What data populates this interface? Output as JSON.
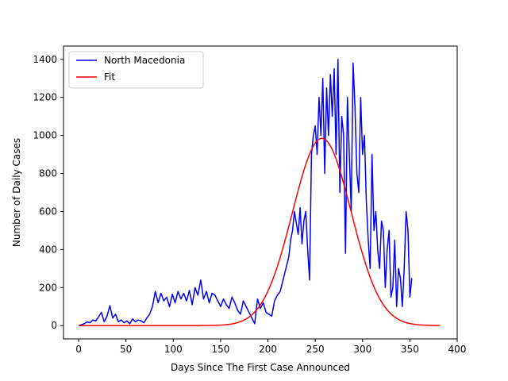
{
  "chart_data": {
    "type": "line",
    "title": "",
    "xlabel": "Days Since The First Case Announced",
    "ylabel": "Number of Daily Cases",
    "xlim": [
      -16,
      400
    ],
    "ylim": [
      -70,
      1470
    ],
    "xticks": [
      0,
      50,
      100,
      150,
      200,
      250,
      300,
      350,
      400
    ],
    "yticks": [
      0,
      200,
      400,
      600,
      800,
      1000,
      1200,
      1400
    ],
    "grid": false,
    "legend_position": "top-left",
    "series": [
      {
        "name": "North Macedonia",
        "color": "#0000ff",
        "x": [
          0,
          3,
          6,
          9,
          12,
          15,
          18,
          21,
          24,
          27,
          30,
          33,
          36,
          39,
          42,
          45,
          48,
          51,
          54,
          57,
          60,
          63,
          66,
          69,
          72,
          75,
          78,
          81,
          84,
          87,
          90,
          93,
          96,
          99,
          102,
          105,
          108,
          111,
          114,
          117,
          120,
          123,
          126,
          129,
          132,
          135,
          138,
          141,
          144,
          147,
          150,
          153,
          156,
          159,
          162,
          165,
          168,
          171,
          174,
          177,
          180,
          183,
          186,
          189,
          192,
          195,
          198,
          201,
          204,
          207,
          210,
          213,
          216,
          219,
          222,
          224,
          226,
          228,
          230,
          232,
          234,
          236,
          238,
          240,
          242,
          244,
          246,
          248,
          250,
          252,
          254,
          256,
          258,
          260,
          262,
          264,
          266,
          268,
          270,
          272,
          274,
          276,
          278,
          280,
          282,
          284,
          286,
          288,
          290,
          292,
          294,
          296,
          298,
          300,
          302,
          304,
          306,
          308,
          310,
          312,
          314,
          316,
          318,
          320,
          322,
          324,
          326,
          328,
          330,
          332,
          334,
          336,
          338,
          340,
          342,
          344,
          346,
          348,
          350,
          352
        ],
        "y": [
          0,
          5,
          10,
          20,
          15,
          30,
          25,
          45,
          70,
          20,
          50,
          105,
          40,
          60,
          20,
          30,
          15,
          25,
          10,
          35,
          20,
          30,
          25,
          15,
          40,
          60,
          100,
          180,
          120,
          170,
          130,
          150,
          100,
          165,
          120,
          180,
          140,
          170,
          130,
          185,
          110,
          200,
          160,
          240,
          140,
          180,
          120,
          170,
          160,
          130,
          100,
          140,
          110,
          90,
          150,
          120,
          80,
          60,
          130,
          100,
          70,
          40,
          10,
          140,
          90,
          120,
          70,
          60,
          50,
          130,
          160,
          180,
          240,
          300,
          360,
          450,
          500,
          600,
          540,
          480,
          620,
          430,
          550,
          600,
          400,
          240,
          900,
          1000,
          1050,
          900,
          1200,
          1000,
          1300,
          800,
          1250,
          1000,
          1320,
          1100,
          1350,
          900,
          1400,
          700,
          1100,
          1000,
          380,
          1200,
          900,
          600,
          1380,
          1150,
          800,
          700,
          1200,
          900,
          1000,
          650,
          450,
          300,
          900,
          500,
          600,
          400,
          300,
          550,
          500,
          200,
          400,
          500,
          150,
          200,
          450,
          100,
          300,
          250,
          100,
          300,
          600,
          500,
          150,
          250
        ],
        "note_peak_x": 252
      },
      {
        "name": "Fit",
        "color": "#ff0000",
        "type": "gaussian",
        "amplitude": 985,
        "center": 257,
        "sigma": 31,
        "x_range": [
          0,
          382
        ]
      }
    ]
  }
}
